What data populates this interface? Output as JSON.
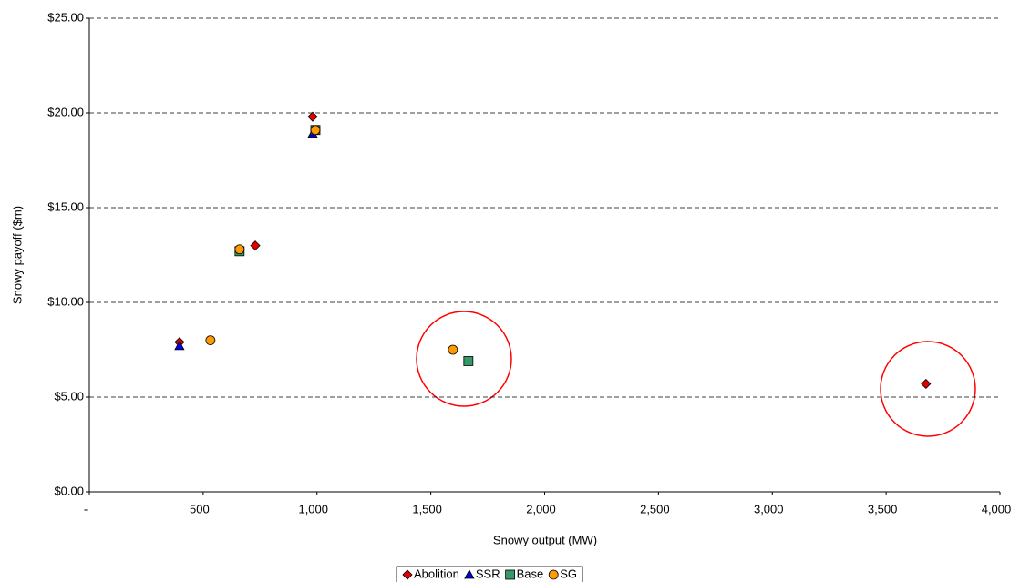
{
  "chart_data": {
    "type": "scatter",
    "xlabel": "Snowy output (MW)",
    "ylabel": "Snowy payoff ($m)",
    "xlim": [
      0,
      4000
    ],
    "xticks": [
      {
        "value": 0,
        "label": "-"
      },
      500,
      {
        "value": 1000,
        "label": "1,000"
      },
      {
        "value": 1500,
        "label": "1,500"
      },
      {
        "value": 2000,
        "label": "2,000"
      },
      {
        "value": 2500,
        "label": "2,500"
      },
      {
        "value": 3000,
        "label": "3,000"
      },
      {
        "value": 3500,
        "label": "3,500"
      },
      {
        "value": 4000,
        "label": "4,000"
      }
    ],
    "ylim": [
      0,
      25
    ],
    "yticks": [
      {
        "value": 0,
        "label": "$0.00"
      },
      {
        "value": 5,
        "label": "$5.00"
      },
      {
        "value": 10,
        "label": "$10.00"
      },
      {
        "value": 15,
        "label": "$15.00"
      },
      {
        "value": 20,
        "label": "$20.00"
      },
      {
        "value": 25,
        "label": "$25.00"
      }
    ],
    "grid": true,
    "legend": "bottom",
    "series": [
      {
        "name": "Abolition",
        "color": "#e00000",
        "marker": "diamond",
        "x": [
          396,
          729,
          981,
          3675
        ],
        "values": [
          7.9,
          13.0,
          19.8,
          5.7
        ]
      },
      {
        "name": "SSR",
        "color": "#0000e0",
        "marker": "triangle",
        "x": [
          396,
          981
        ],
        "values": [
          7.7,
          18.9
        ]
      },
      {
        "name": "Base",
        "color": "#339966",
        "marker": "square",
        "x": [
          660,
          993,
          1665
        ],
        "values": [
          12.7,
          19.1,
          6.9
        ]
      },
      {
        "name": "SG",
        "color": "#ff9900",
        "marker": "circle",
        "x": [
          532,
          660,
          993,
          1597
        ],
        "values": [
          8.0,
          12.8,
          19.1,
          7.5
        ]
      }
    ]
  }
}
